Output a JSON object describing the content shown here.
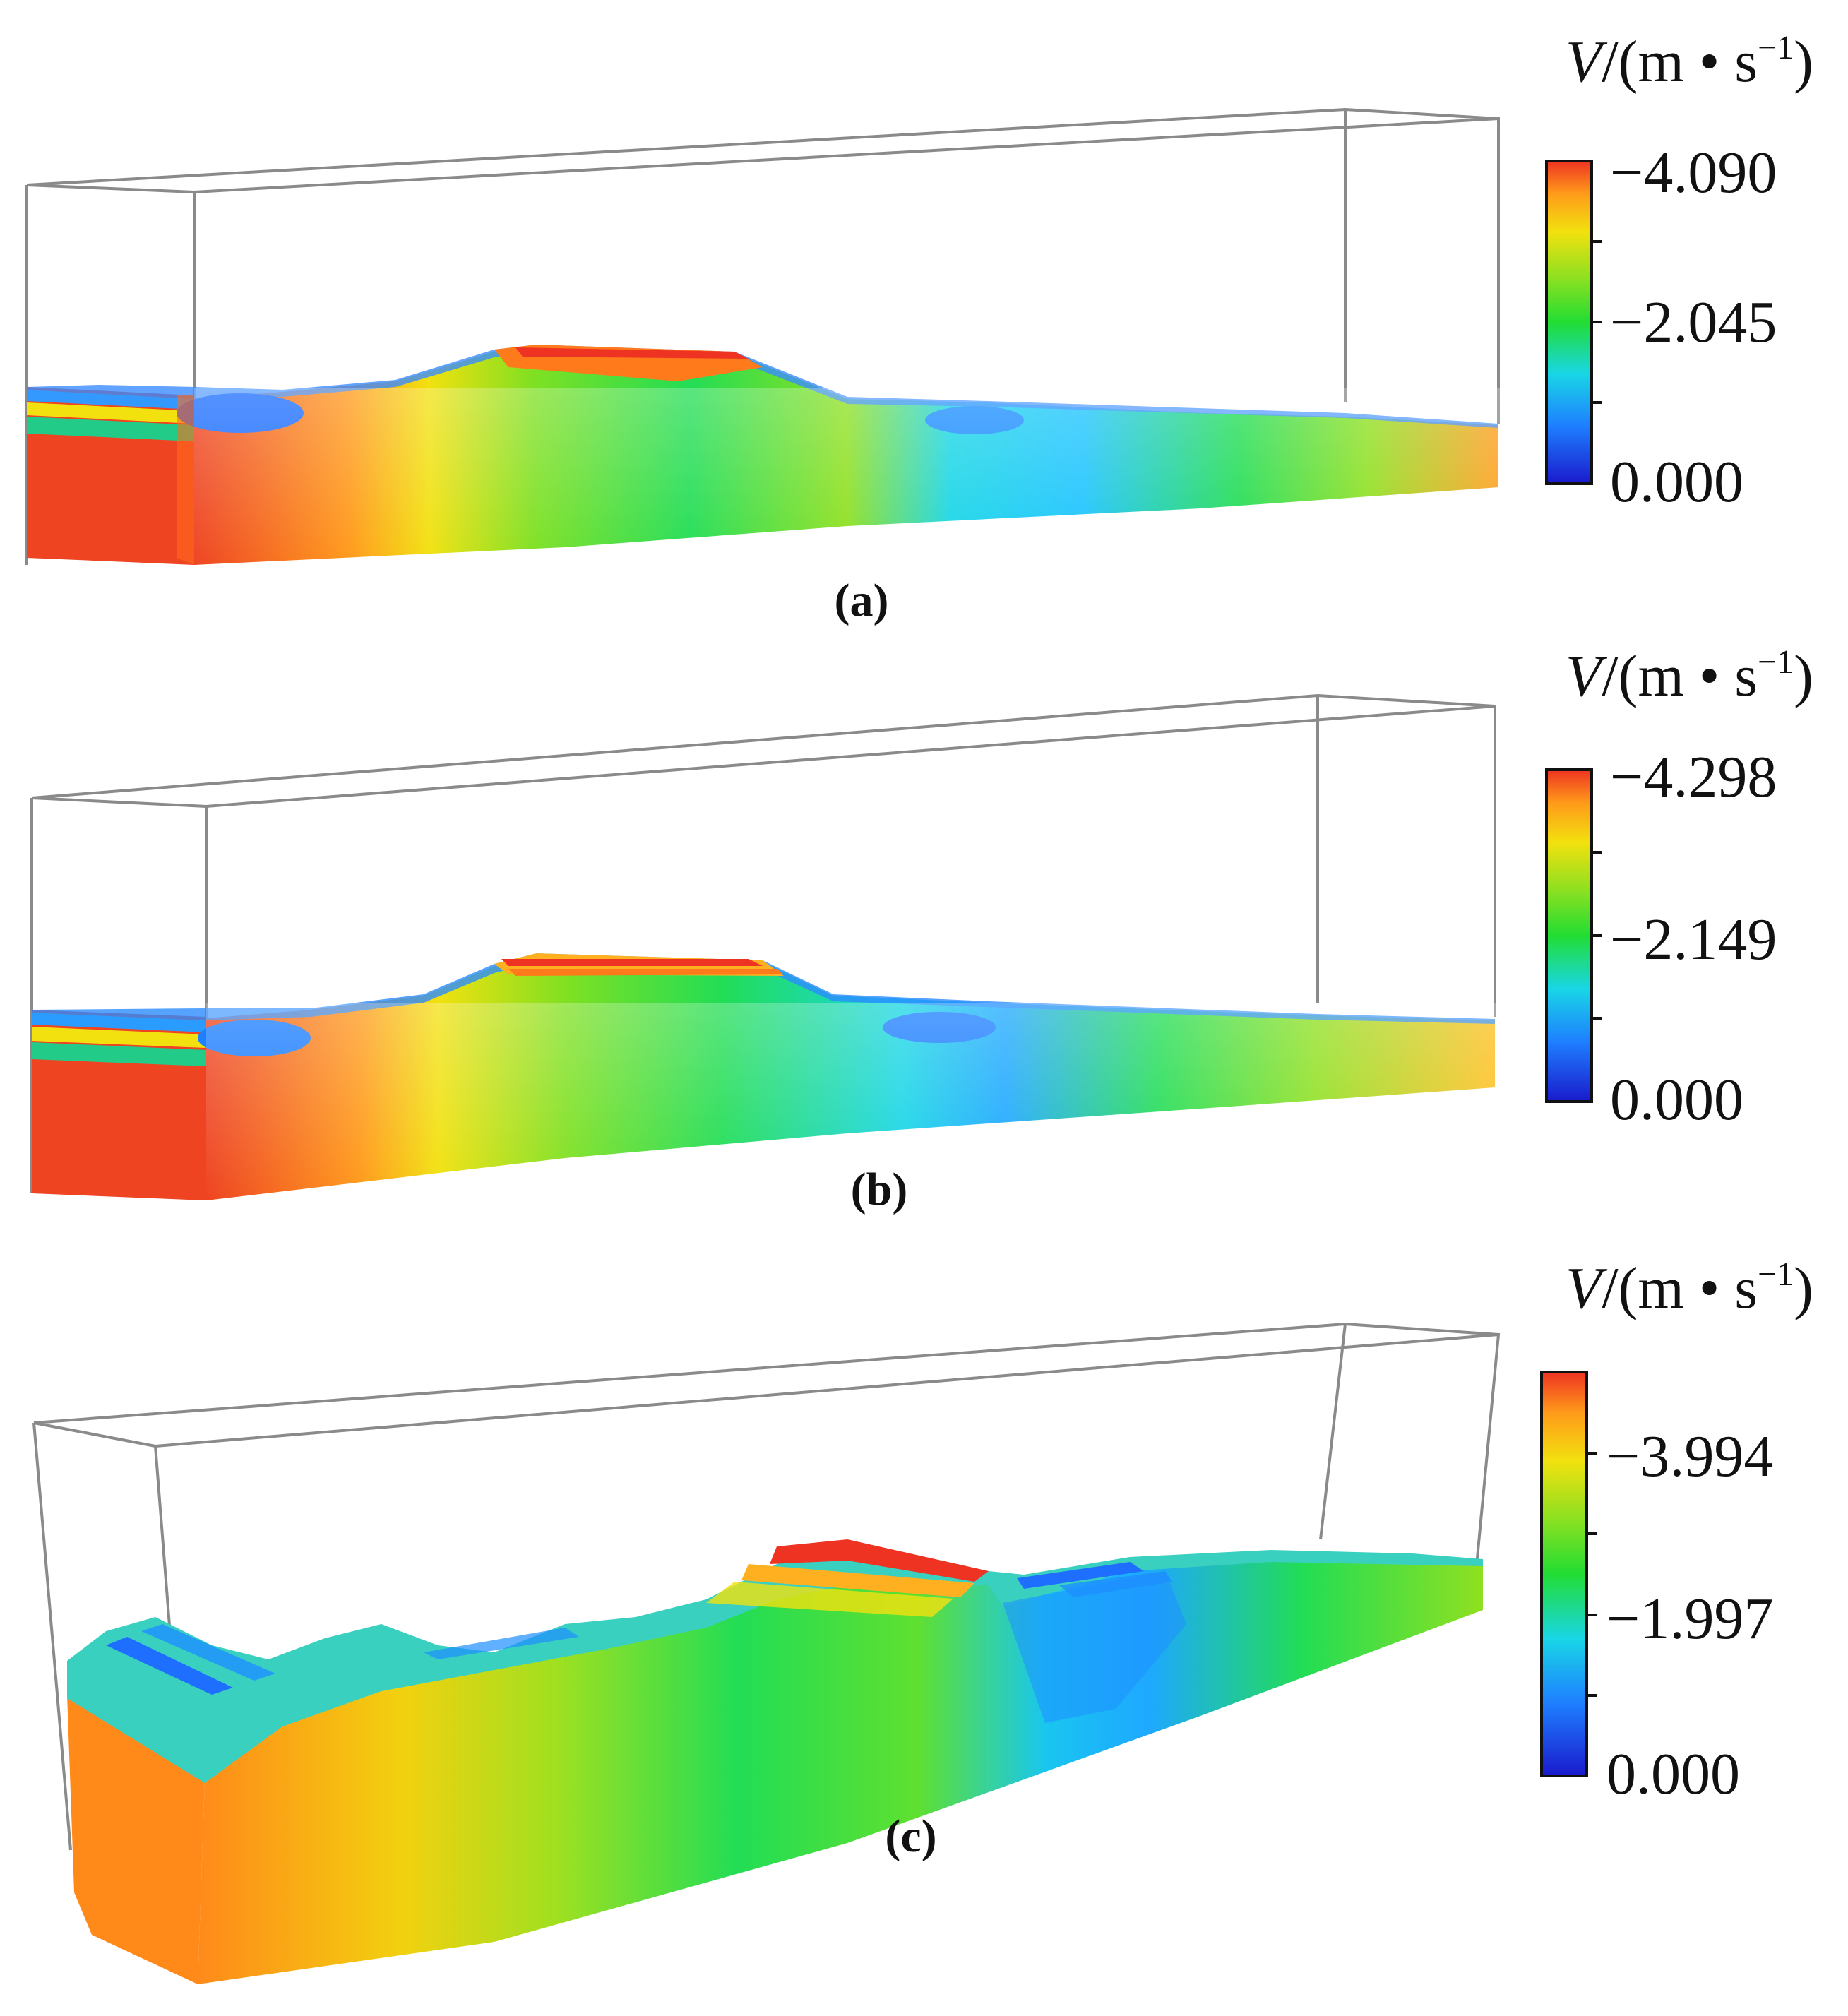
{
  "colors": {
    "scale": [
      "#1a1acc",
      "#1e7fff",
      "#19d6e6",
      "#22dd33",
      "#8fe020",
      "#f2e10f",
      "#ff9a1a",
      "#ee3322"
    ],
    "wireframe": "#8a8a8a",
    "background": "#ffffff"
  },
  "panels": [
    {
      "label": "(a)",
      "colorbar": {
        "unit_var": "V",
        "unit_rest": "/(m • s",
        "unit_sup": "−1",
        "unit_close": ")",
        "max_label": "−4.090",
        "mid_label": "−2.045",
        "min_label": "0.000"
      }
    },
    {
      "label": "(b)",
      "colorbar": {
        "unit_var": "V",
        "unit_rest": "/(m • s",
        "unit_sup": "−1",
        "unit_close": ")",
        "max_label": "−4.298",
        "mid_label": "−2.149",
        "min_label": "0.000"
      }
    },
    {
      "label": "(c)",
      "colorbar": {
        "unit_var": "V",
        "unit_rest": "/(m • s",
        "unit_sup": "−1",
        "unit_close": ")",
        "max_label": "",
        "mid_label": "−3.994",
        "low_label": "−1.997",
        "min_label": "0.000"
      }
    }
  ]
}
